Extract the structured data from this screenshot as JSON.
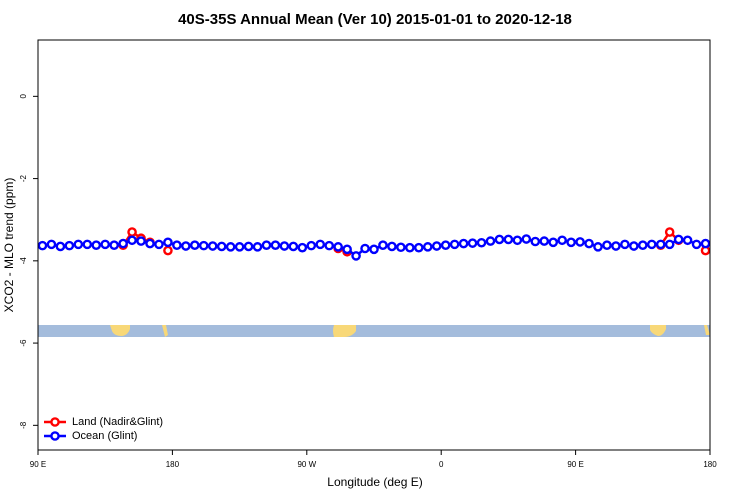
{
  "chart_data": {
    "type": "line",
    "title": "40S-35S Annual Mean (Ver 10)   2015-01-01 to 2020-12-18",
    "x_label": "Longitude (deg E)",
    "y_label": "XCO2 - MLO trend (ppm)",
    "x": [
      93,
      99,
      105,
      111,
      117,
      123,
      129,
      135,
      141,
      147,
      153,
      159,
      165,
      171,
      177,
      183,
      189,
      195,
      201,
      207,
      213,
      219,
      225,
      231,
      237,
      243,
      249,
      255,
      261,
      267,
      273,
      279,
      285,
      291,
      297,
      303,
      309,
      315,
      321,
      327,
      333,
      339,
      345,
      351,
      357,
      363,
      369,
      375,
      381,
      387,
      393,
      399,
      405,
      411,
      417,
      423,
      429,
      435,
      441,
      447,
      453,
      459,
      465,
      471,
      477,
      483,
      489,
      495,
      501,
      507,
      513,
      519,
      525,
      531,
      537
    ],
    "series": [
      {
        "name": "Land (Nadir&Glint)",
        "color": "#ff0000",
        "values": [
          null,
          null,
          null,
          null,
          null,
          null,
          null,
          null,
          null,
          -3.62,
          -3.3,
          -3.45,
          -3.55,
          null,
          -3.75,
          null,
          null,
          null,
          null,
          null,
          null,
          null,
          null,
          null,
          null,
          null,
          null,
          null,
          null,
          null,
          null,
          null,
          null,
          -3.7,
          -3.78,
          null,
          null,
          null,
          null,
          null,
          null,
          null,
          null,
          null,
          null,
          null,
          null,
          null,
          null,
          null,
          null,
          null,
          null,
          null,
          null,
          null,
          null,
          null,
          null,
          null,
          null,
          null,
          null,
          null,
          null,
          null,
          null,
          null,
          null,
          -3.62,
          -3.3,
          -3.5,
          null,
          null,
          -3.75
        ]
      },
      {
        "name": "Ocean (Glint)",
        "color": "#0000ff",
        "values": [
          -3.63,
          -3.6,
          -3.65,
          -3.63,
          -3.6,
          -3.6,
          -3.62,
          -3.6,
          -3.62,
          -3.58,
          -3.5,
          -3.52,
          -3.58,
          -3.6,
          -3.55,
          -3.62,
          -3.64,
          -3.62,
          -3.63,
          -3.64,
          -3.65,
          -3.66,
          -3.66,
          -3.65,
          -3.66,
          -3.62,
          -3.62,
          -3.64,
          -3.65,
          -3.68,
          -3.63,
          -3.6,
          -3.63,
          -3.66,
          -3.72,
          -3.88,
          -3.7,
          -3.72,
          -3.62,
          -3.65,
          -3.67,
          -3.68,
          -3.68,
          -3.66,
          -3.64,
          -3.62,
          -3.6,
          -3.58,
          -3.57,
          -3.56,
          -3.52,
          -3.48,
          -3.48,
          -3.5,
          -3.47,
          -3.53,
          -3.52,
          -3.55,
          -3.5,
          -3.55,
          -3.54,
          -3.58,
          -3.66,
          -3.62,
          -3.64,
          -3.6,
          -3.64,
          -3.62,
          -3.6,
          -3.6,
          -3.6,
          -3.48,
          -3.5,
          -3.6,
          -3.58
        ]
      }
    ],
    "xlim": [
      90,
      540
    ],
    "xticks": [
      {
        "value": 90,
        "label": "90 E"
      },
      {
        "value": 180,
        "label": "180"
      },
      {
        "value": 270,
        "label": "90 W"
      },
      {
        "value": 360,
        "label": "0"
      },
      {
        "value": 450,
        "label": "90 E"
      },
      {
        "value": 540,
        "label": "180"
      }
    ],
    "ylim": [
      -8.6,
      1.37
    ],
    "yticks": [
      0,
      -2,
      -4,
      -6,
      -8
    ],
    "legend": "bottom-left"
  }
}
